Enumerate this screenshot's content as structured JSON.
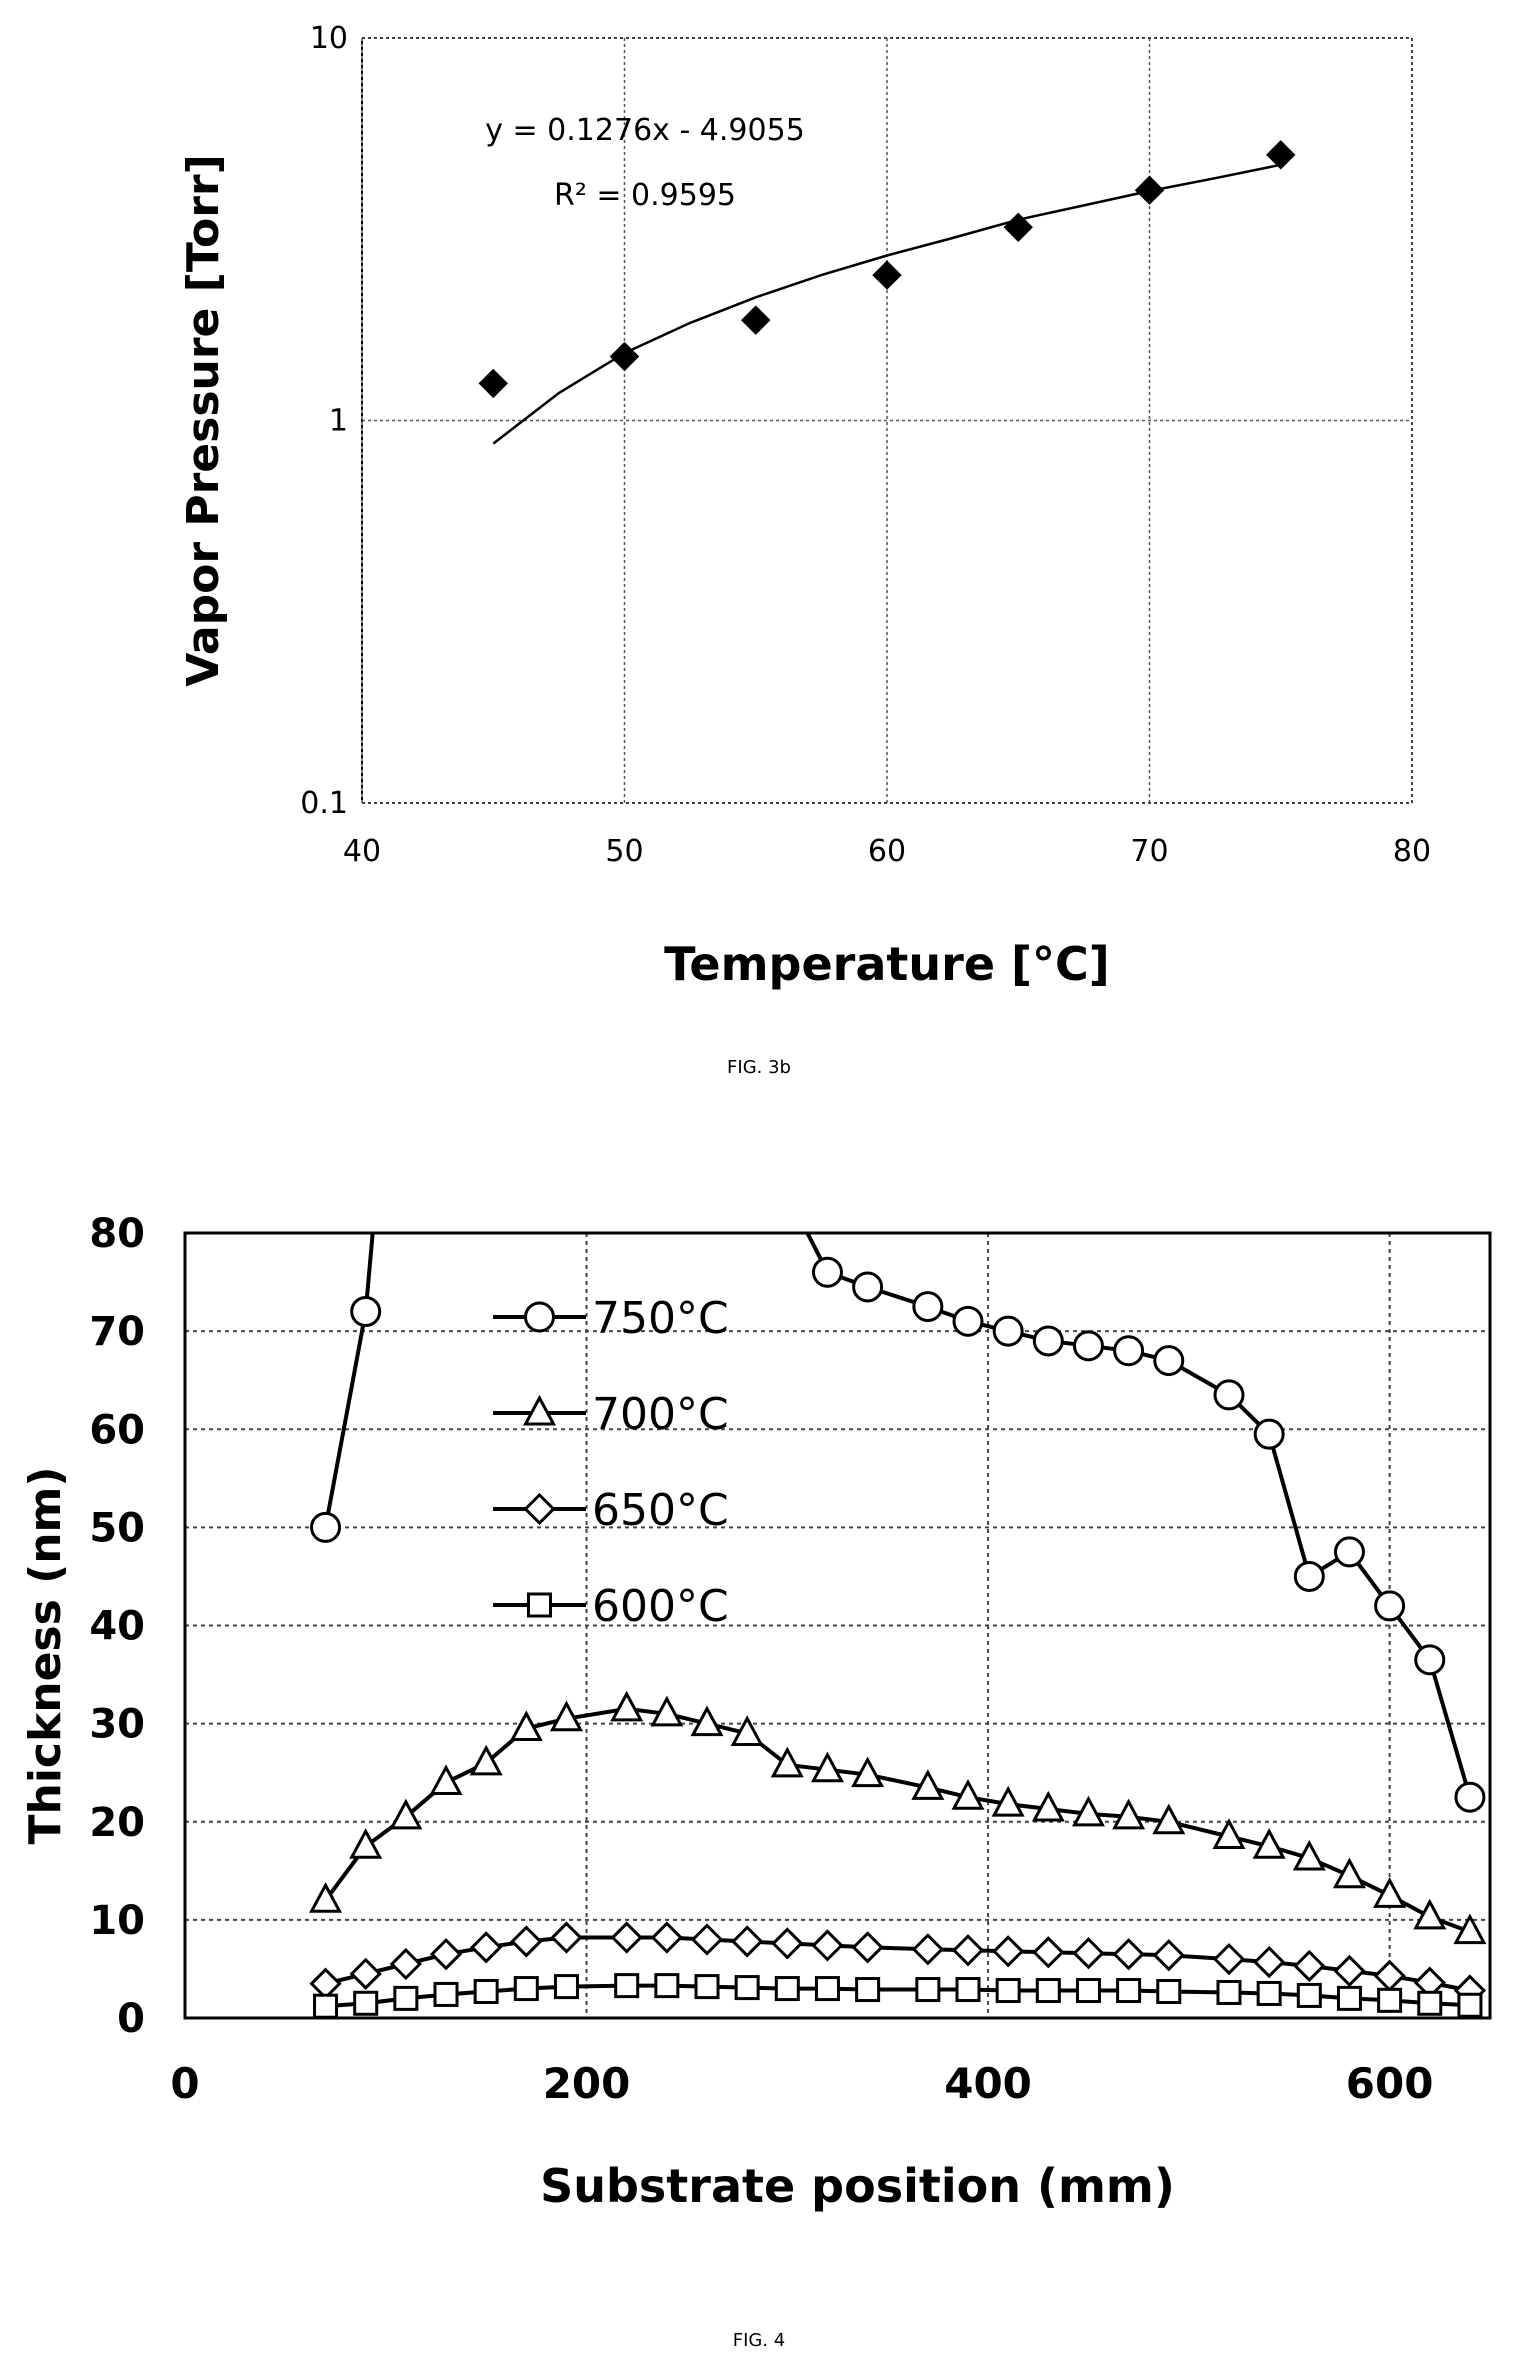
{
  "figures": [
    {
      "caption": "FIG. 3b"
    },
    {
      "caption": "FIG. 4"
    }
  ],
  "chart_data": [
    {
      "type": "scatter",
      "xlabel": "Temperature [°C]",
      "ylabel": "Vapor Pressure [Torr]",
      "xlim": [
        40,
        80
      ],
      "ylim": [
        0.1,
        10
      ],
      "yscale": "log",
      "x_ticks": [
        "40",
        "50",
        "60",
        "70",
        "80"
      ],
      "y_ticks": [
        "0.1",
        "1",
        "10"
      ],
      "grid": true,
      "series": [
        {
          "x": [
            45,
            50,
            55,
            60,
            65,
            70,
            75
          ],
          "y": [
            1.25,
            1.47,
            1.83,
            2.4,
            3.2,
            4.0,
            4.95
          ]
        }
      ],
      "trendline": {
        "equation": "y = 0.1276x - 4.9055",
        "r_squared": "R² = 0.9595",
        "x": [
          45,
          47.5,
          50,
          52.5,
          55,
          57.5,
          60,
          62.5,
          65,
          67.5,
          70,
          72.5,
          75
        ],
        "y": [
          0.87,
          1.18,
          1.5,
          1.8,
          2.1,
          2.4,
          2.7,
          3.0,
          3.35,
          3.65,
          3.98,
          4.3,
          4.66
        ]
      },
      "marker_color": "#000000"
    },
    {
      "type": "line",
      "xlabel": "Substrate position (mm)",
      "ylabel": "Thickness (nm)",
      "xlim": [
        0,
        650
      ],
      "ylim": [
        0,
        80
      ],
      "x_ticks": [
        "0",
        "200",
        "400",
        "600"
      ],
      "y_ticks": [
        "0",
        "10",
        "20",
        "30",
        "40",
        "50",
        "60",
        "70",
        "80"
      ],
      "grid": true,
      "legend_position": "top-left",
      "series": [
        {
          "name": "750°C",
          "marker": "circle",
          "x": [
            70,
            90,
            320,
            340,
            370,
            390,
            410,
            430,
            450,
            470,
            490,
            520,
            540,
            560,
            580,
            600,
            620,
            640
          ],
          "y": [
            50,
            72,
            76,
            74.5,
            72.5,
            71,
            70,
            69,
            68.5,
            68,
            67,
            63.5,
            59.5,
            45,
            47.5,
            42,
            36.5,
            22.5
          ],
          "segments": [
            [
              0,
              1
            ],
            [
              2,
              17
            ]
          ]
        },
        {
          "name": "700°C",
          "marker": "triangle",
          "x": [
            70,
            90,
            110,
            130,
            150,
            170,
            190,
            220,
            240,
            260,
            280,
            300,
            320,
            340,
            370,
            390,
            410,
            430,
            450,
            470,
            490,
            520,
            540,
            560,
            580,
            600,
            620,
            640
          ],
          "y": [
            12,
            17.5,
            20.5,
            24,
            26,
            29.5,
            30.5,
            31.5,
            31,
            30,
            29,
            25.8,
            25.3,
            24.8,
            23.5,
            22.5,
            21.8,
            21.3,
            20.8,
            20.5,
            20,
            18.5,
            17.5,
            16.3,
            14.5,
            12.5,
            10.3,
            8.8
          ],
          "segments": [
            [
              0,
              27
            ]
          ]
        },
        {
          "name": "650°C",
          "marker": "diamond",
          "x": [
            70,
            90,
            110,
            130,
            150,
            170,
            190,
            220,
            240,
            260,
            280,
            300,
            320,
            340,
            370,
            390,
            410,
            430,
            450,
            470,
            490,
            520,
            540,
            560,
            580,
            600,
            620,
            640
          ],
          "y": [
            3.5,
            4.5,
            5.5,
            6.5,
            7.2,
            7.8,
            8.2,
            8.2,
            8.2,
            8.0,
            7.8,
            7.6,
            7.4,
            7.2,
            7.0,
            6.9,
            6.8,
            6.7,
            6.6,
            6.5,
            6.4,
            6.0,
            5.7,
            5.3,
            4.8,
            4.3,
            3.6,
            2.8
          ],
          "segments": [
            [
              0,
              27
            ]
          ]
        },
        {
          "name": "600°C",
          "marker": "square",
          "x": [
            70,
            90,
            110,
            130,
            150,
            170,
            190,
            220,
            240,
            260,
            280,
            300,
            320,
            340,
            370,
            390,
            410,
            430,
            450,
            470,
            490,
            520,
            540,
            560,
            580,
            600,
            620,
            640
          ],
          "y": [
            1.2,
            1.5,
            2.0,
            2.4,
            2.7,
            3.0,
            3.2,
            3.3,
            3.3,
            3.2,
            3.1,
            3.0,
            3.0,
            2.9,
            2.9,
            2.9,
            2.8,
            2.8,
            2.8,
            2.8,
            2.7,
            2.6,
            2.5,
            2.3,
            2.0,
            1.8,
            1.5,
            1.3
          ],
          "segments": [
            [
              0,
              27
            ]
          ]
        }
      ]
    }
  ]
}
